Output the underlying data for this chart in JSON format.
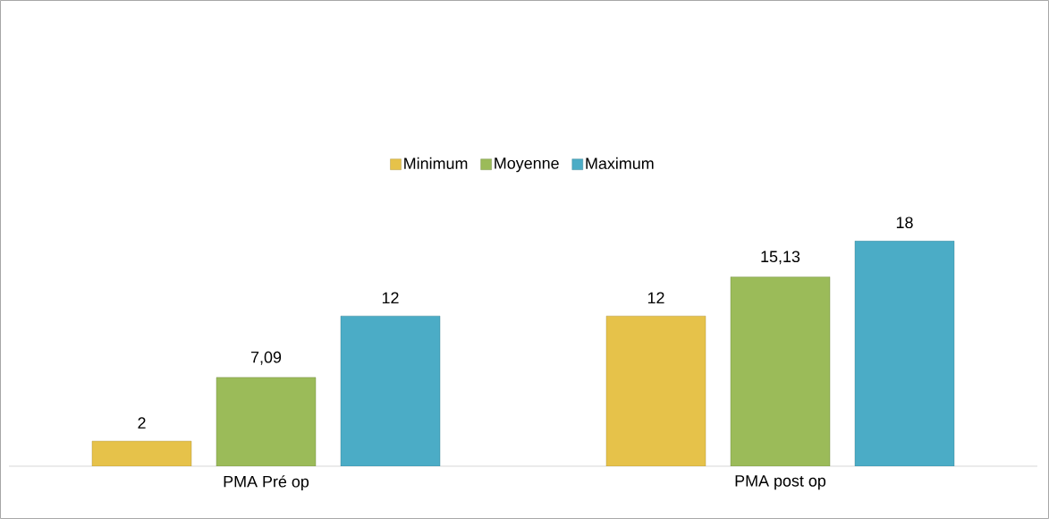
{
  "chart_data": {
    "type": "bar",
    "categories": [
      "PMA Pré op",
      "PMA post op"
    ],
    "series": [
      {
        "name": "Minimum",
        "color": "#e6c24a",
        "values": [
          2,
          12
        ],
        "value_labels": [
          "2",
          "12"
        ]
      },
      {
        "name": "Moyenne",
        "color": "#9bbb59",
        "values": [
          7.09,
          15.13
        ],
        "value_labels": [
          "7,09",
          "15,13"
        ]
      },
      {
        "name": "Maximum",
        "color": "#4bacc6",
        "values": [
          12,
          18
        ],
        "value_labels": [
          "12",
          "18"
        ]
      }
    ],
    "legend": "top"
  }
}
